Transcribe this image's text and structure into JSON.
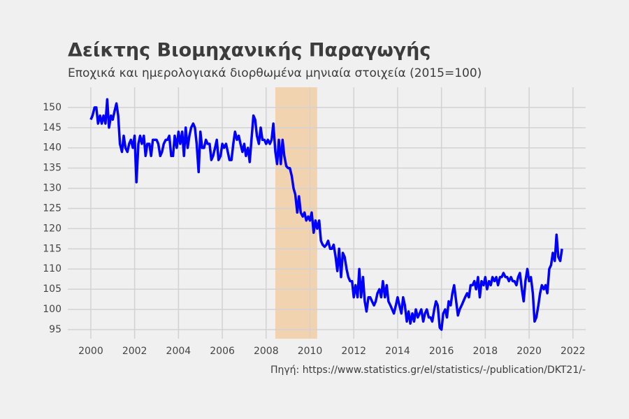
{
  "chart_data": {
    "type": "line",
    "title": "Δείκτης Βιομηχανικής Παραγωγής",
    "subtitle": "Εποχικά και ημερολογιακά διορθωμένα μηνιαία στοιχεία (2015=100)",
    "source": "Πηγή: https://www.statistics.gr/el/statistics/-/publication/DKT21/-",
    "xlim": [
      1998.95,
      2022.58
    ],
    "ylim": [
      92.75,
      155
    ],
    "xticks": [
      2000,
      2002,
      2004,
      2006,
      2008,
      2010,
      2012,
      2014,
      2016,
      2018,
      2020,
      2022
    ],
    "yticks": [
      95,
      100,
      105,
      110,
      115,
      120,
      125,
      130,
      135,
      140,
      145,
      150
    ],
    "grid": true,
    "shaded_span": [
      2008.42,
      2010.33
    ],
    "shaded_color": "#f2d3b0",
    "x": [
      2000,
      2000.08,
      2000.17,
      2000.25,
      2000.33,
      2000.42,
      2000.5,
      2000.58,
      2000.67,
      2000.75,
      2000.83,
      2000.92,
      2001,
      2001.08,
      2001.17,
      2001.25,
      2001.33,
      2001.42,
      2001.5,
      2001.58,
      2001.67,
      2001.75,
      2001.83,
      2001.92,
      2002,
      2002.08,
      2002.17,
      2002.25,
      2002.33,
      2002.42,
      2002.5,
      2002.58,
      2002.67,
      2002.75,
      2002.83,
      2002.92,
      2003,
      2003.08,
      2003.17,
      2003.25,
      2003.33,
      2003.42,
      2003.5,
      2003.58,
      2003.67,
      2003.75,
      2003.83,
      2003.92,
      2004,
      2004.08,
      2004.17,
      2004.25,
      2004.33,
      2004.42,
      2004.5,
      2004.58,
      2004.67,
      2004.75,
      2004.83,
      2004.92,
      2005,
      2005.08,
      2005.17,
      2005.25,
      2005.33,
      2005.42,
      2005.5,
      2005.58,
      2005.67,
      2005.75,
      2005.83,
      2005.92,
      2006,
      2006.08,
      2006.17,
      2006.25,
      2006.33,
      2006.42,
      2006.5,
      2006.58,
      2006.67,
      2006.75,
      2006.83,
      2006.92,
      2007,
      2007.08,
      2007.17,
      2007.25,
      2007.33,
      2007.42,
      2007.5,
      2007.58,
      2007.67,
      2007.75,
      2007.83,
      2007.92,
      2008,
      2008.08,
      2008.17,
      2008.25,
      2008.33,
      2008.42,
      2008.5,
      2008.58,
      2008.67,
      2008.75,
      2008.83,
      2008.92,
      2009,
      2009.08,
      2009.17,
      2009.25,
      2009.33,
      2009.42,
      2009.5,
      2009.58,
      2009.67,
      2009.75,
      2009.83,
      2009.92,
      2010,
      2010.08,
      2010.17,
      2010.25,
      2010.33,
      2010.42,
      2010.5,
      2010.58,
      2010.67,
      2010.75,
      2010.83,
      2010.92,
      2011,
      2011.08,
      2011.17,
      2011.25,
      2011.33,
      2011.42,
      2011.5,
      2011.58,
      2011.67,
      2011.75,
      2011.83,
      2011.92,
      2012,
      2012.08,
      2012.17,
      2012.25,
      2012.33,
      2012.42,
      2012.5,
      2012.58,
      2012.67,
      2012.75,
      2012.83,
      2012.92,
      2013,
      2013.08,
      2013.17,
      2013.25,
      2013.33,
      2013.42,
      2013.5,
      2013.58,
      2013.67,
      2013.75,
      2013.83,
      2013.92,
      2014,
      2014.08,
      2014.17,
      2014.25,
      2014.33,
      2014.42,
      2014.5,
      2014.58,
      2014.67,
      2014.75,
      2014.83,
      2014.92,
      2015,
      2015.08,
      2015.17,
      2015.25,
      2015.33,
      2015.42,
      2015.5,
      2015.58,
      2015.67,
      2015.75,
      2015.83,
      2015.92,
      2016,
      2016.08,
      2016.17,
      2016.25,
      2016.33,
      2016.42,
      2016.5,
      2016.58,
      2016.67,
      2016.75,
      2016.83,
      2016.92,
      2017,
      2017.08,
      2017.17,
      2017.25,
      2017.33,
      2017.42,
      2017.5,
      2017.58,
      2017.67,
      2017.75,
      2017.83,
      2017.92,
      2018,
      2018.08,
      2018.17,
      2018.25,
      2018.33,
      2018.42,
      2018.5,
      2018.58,
      2018.67,
      2018.75,
      2018.83,
      2018.92,
      2019,
      2019.08,
      2019.17,
      2019.25,
      2019.33,
      2019.42,
      2019.5,
      2019.58,
      2019.67,
      2019.75,
      2019.83,
      2019.92,
      2020,
      2020.08,
      2020.17,
      2020.25,
      2020.33,
      2020.42,
      2020.5,
      2020.58,
      2020.67,
      2020.75,
      2020.83,
      2020.92,
      2021,
      2021.08,
      2021.17,
      2021.25,
      2021.33,
      2021.42,
      2021.5
    ],
    "series": [
      {
        "color": "#0000ff",
        "values": [
          147,
          148,
          150,
          150,
          146,
          148,
          146,
          148,
          146,
          152,
          145,
          148,
          147,
          149,
          151,
          148,
          141,
          139,
          143,
          140,
          139,
          141,
          142,
          140,
          143,
          131.5,
          141,
          143,
          141,
          143,
          138,
          141,
          141,
          138,
          142,
          142,
          142,
          141,
          138,
          139,
          141,
          142,
          142,
          143,
          138,
          138,
          143,
          140,
          144,
          141,
          144,
          138,
          145,
          140,
          143,
          145,
          146,
          145,
          141,
          134,
          144,
          140,
          140,
          142,
          141,
          141,
          137,
          138,
          140,
          142,
          137,
          138,
          141,
          140,
          141,
          139,
          137,
          137,
          141,
          144,
          142,
          143,
          141,
          139,
          141,
          138,
          140,
          136.5,
          142,
          148,
          147,
          143,
          141,
          145,
          142,
          142,
          141,
          142,
          141,
          142,
          146,
          139,
          136,
          142,
          136,
          142,
          138,
          135.5,
          135,
          135,
          133,
          130,
          128.5,
          124,
          128,
          124,
          123,
          124,
          122,
          123,
          122,
          124,
          119,
          122,
          120,
          122,
          117,
          116,
          115.5,
          116,
          117,
          115,
          115,
          116,
          113,
          109.5,
          115,
          108,
          114,
          113,
          110,
          108,
          107,
          107,
          103,
          106,
          103,
          110,
          103,
          108,
          102,
          99.5,
          103,
          103,
          102,
          101,
          102,
          104,
          105,
          103,
          107,
          103,
          106,
          102,
          101,
          100,
          99,
          101,
          103,
          101,
          99,
          103,
          101,
          97,
          99.5,
          96.5,
          99,
          97,
          100,
          98,
          99,
          100,
          97,
          99,
          100,
          98,
          98,
          97,
          100,
          102,
          101,
          95.5,
          95,
          99,
          100,
          98,
          102,
          101,
          104,
          106,
          102,
          98.5,
          100,
          101,
          102,
          103,
          104,
          103,
          106,
          106,
          107,
          105,
          108,
          103,
          107,
          106,
          108,
          105,
          107,
          106,
          108,
          107,
          108,
          106,
          108,
          108,
          109,
          108,
          108,
          107,
          108,
          107,
          107,
          106,
          108,
          109,
          105,
          102,
          107,
          110,
          107,
          108,
          104,
          97,
          98,
          101,
          104,
          106,
          105,
          106,
          104,
          110,
          111,
          114,
          112,
          118.5,
          113,
          112,
          115
        ]
      }
    ]
  }
}
